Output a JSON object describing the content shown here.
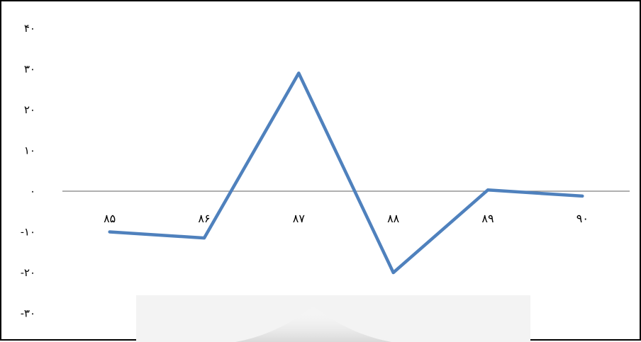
{
  "chart_data": {
    "type": "line",
    "title": "",
    "xlabel": "",
    "ylabel": "",
    "categories": [
      "۸۵",
      "۸۶",
      "۸۷",
      "۸۸",
      "۸۹",
      "۹۰"
    ],
    "series": [
      {
        "values": [
          -10,
          -11.5,
          29,
          -20,
          0.3,
          -1.2
        ],
        "color": "#4f81bd"
      }
    ],
    "ylim": [
      -30,
      40
    ],
    "yticks": [
      40,
      30,
      20,
      10,
      0,
      -10,
      -20,
      -30
    ],
    "ytick_labels": [
      "۴۰",
      "۳۰",
      "۲۰",
      "۱۰",
      "۰",
      "-۱۰",
      "-۲۰",
      "-۳۰"
    ],
    "grid": false,
    "legend": "none",
    "zero_line_color": "#808080",
    "watermark": "faded decorative emblem at bottom center"
  }
}
